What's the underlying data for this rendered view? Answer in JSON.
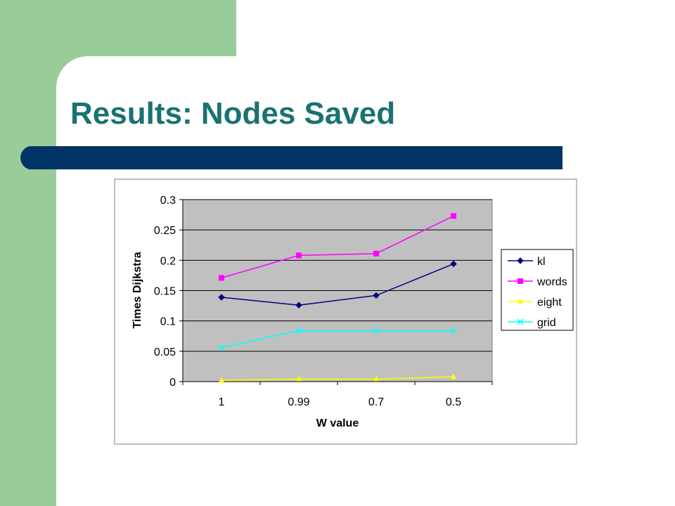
{
  "slide": {
    "title": "Results: Nodes Saved"
  },
  "chart_data": {
    "type": "line",
    "y_label": "Times Dijkstra",
    "x_label": "W value",
    "categories": [
      "1",
      "0.99",
      "0.7",
      "0.5"
    ],
    "series": [
      {
        "name": "kl",
        "color": "#000080",
        "marker": "diamond",
        "values": [
          0.139,
          0.126,
          0.142,
          0.194
        ]
      },
      {
        "name": "words",
        "color": "#ff00ff",
        "marker": "square",
        "values": [
          0.171,
          0.208,
          0.211,
          0.273
        ]
      },
      {
        "name": "eight",
        "color": "#ffff00",
        "marker": "triangle",
        "values": [
          0.002,
          0.004,
          0.004,
          0.008
        ]
      },
      {
        "name": "grid",
        "color": "#00ffff",
        "marker": "x",
        "values": [
          0.056,
          0.084,
          0.084,
          0.084
        ]
      }
    ],
    "ylim": [
      0,
      0.3
    ],
    "yticks": [
      0,
      0.05,
      0.1,
      0.15,
      0.2,
      0.25,
      0.3
    ],
    "grid": true,
    "legend": "right"
  }
}
